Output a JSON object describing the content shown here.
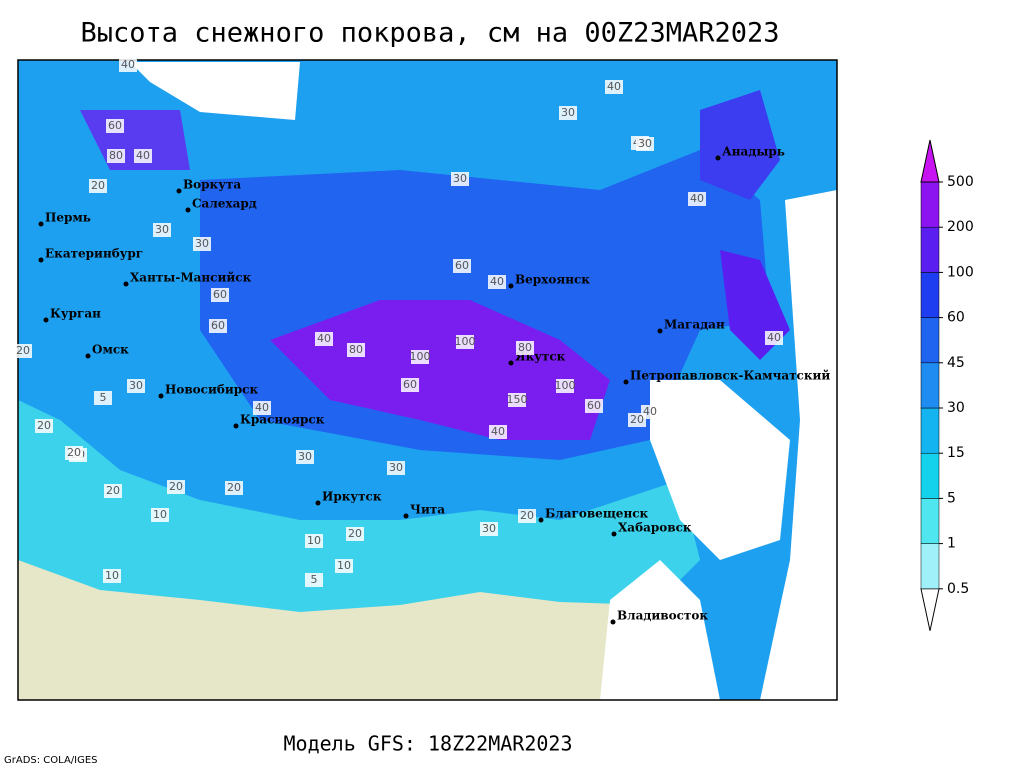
{
  "title": "Высота снежного покрова, см на 00Z23MAR2023",
  "subtitle": "Модель GFS: 18Z22MAR2023",
  "credit": "GrADS: COLA/IGES",
  "colorbar": {
    "levels": [
      0.5,
      1,
      5,
      15,
      30,
      45,
      60,
      100,
      200,
      500
    ],
    "colors": [
      "#ffffff",
      "#a0f0fa",
      "#50e6f0",
      "#14d2ec",
      "#14b4f0",
      "#1e8cf0",
      "#1e64f0",
      "#1e3cf0",
      "#5a1ef0",
      "#8c14f0",
      "#c814f0"
    ]
  },
  "cities": [
    "Воркута",
    "Салехард",
    "Пермь",
    "Екатеринбург",
    "Ханты-Мансийск",
    "Курган",
    "Омск",
    "Новосибирск",
    "Красноярск",
    "Иркутск",
    "Чита",
    "Благовещенск",
    "Хабаровск",
    "Владивосток",
    "Верхоянск",
    "Якутск",
    "Магадан",
    "Петропавловск-Камчатский",
    "Анадырь"
  ],
  "contour_labels": [
    40,
    60,
    80,
    40,
    20,
    30,
    30,
    30,
    40,
    40,
    60,
    40,
    60,
    80,
    100,
    100,
    150,
    100,
    60,
    80,
    40,
    60,
    40,
    30,
    20,
    20,
    20,
    20,
    10,
    10,
    10,
    5,
    20,
    30,
    30,
    20,
    20,
    30,
    40,
    40,
    20,
    5,
    30,
    60,
    40,
    40,
    10,
    20,
    30,
    20
  ]
}
